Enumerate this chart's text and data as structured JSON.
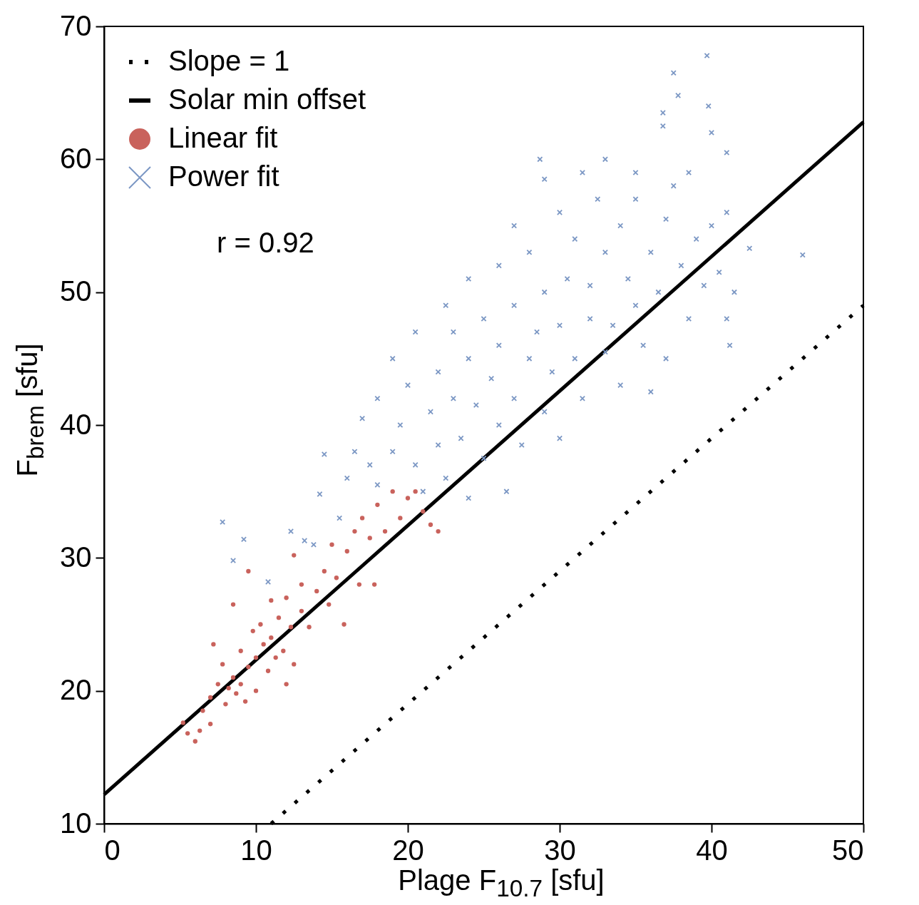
{
  "chart_data": {
    "type": "scatter",
    "xlabel": "Plage F$_{10.7}$ [sfu]",
    "ylabel": "F$_{brem}$ [sfu]",
    "xlim": [
      0,
      50
    ],
    "xticks": [
      0,
      10,
      20,
      30,
      40,
      50
    ],
    "ylim": [
      10,
      70
    ],
    "yticks": [
      10,
      20,
      30,
      40,
      50,
      60,
      70
    ],
    "legend": "top left",
    "annotations": [
      "r = 0.92"
    ],
    "series": [
      {
        "name": "Slope = 1",
        "type": "line",
        "line_style": "dotted",
        "color": "#000000",
        "x": [
          11,
          50
        ],
        "values": [
          10,
          49
        ]
      },
      {
        "name": "Solar min offset",
        "type": "line",
        "line_style": "solid",
        "color": "#000000",
        "x": [
          0,
          50
        ],
        "values": [
          12.2,
          62.8
        ]
      },
      {
        "name": "Linear fit",
        "marker": "circle",
        "color": "#c9625c",
        "x": [
          5.2,
          5.5,
          6,
          6.3,
          6.5,
          7,
          7,
          7.5,
          7.8,
          8,
          8.2,
          8.5,
          8.7,
          9,
          9,
          9.3,
          9.5,
          9.8,
          10,
          10,
          10.3,
          10.5,
          10.8,
          11,
          11,
          11.3,
          11.5,
          11.8,
          12,
          12,
          12.3,
          12.5,
          13,
          13,
          13.5,
          14,
          14.5,
          14.8,
          15,
          15.3,
          15.8,
          16,
          16.5,
          16.8,
          17,
          17.5,
          17.8,
          18,
          18.5,
          19,
          19.5,
          20,
          20.5,
          21,
          21.5,
          22,
          9.5,
          7.2,
          8.5,
          12.5
        ],
        "values": [
          17.6,
          16.8,
          16.2,
          17,
          18.5,
          19.5,
          17.5,
          20.5,
          22,
          19,
          20.2,
          21,
          19.8,
          20.5,
          23,
          19.2,
          21.8,
          24.5,
          20,
          22.5,
          25,
          23.5,
          21.5,
          24,
          26.8,
          22.5,
          25.5,
          23,
          27,
          20.5,
          24.8,
          22,
          26,
          28,
          24.8,
          27.5,
          29,
          26.5,
          31,
          28.5,
          25,
          30.5,
          32,
          28,
          33,
          31.5,
          28,
          34,
          32,
          35,
          33,
          34.5,
          35,
          33.5,
          32.5,
          32,
          29,
          23.5,
          26.5,
          30.2
        ]
      },
      {
        "name": "Power fit",
        "marker": "cross",
        "color": "#7b97c4",
        "x": [
          37.5,
          39.7,
          37.8,
          36.8,
          39.8,
          36.8,
          46,
          42.5,
          41,
          41.2,
          28.7,
          33,
          41,
          7.8,
          8.5,
          9.2,
          10.8,
          12.3,
          13.2,
          13.8,
          14.2,
          15.5,
          16,
          16.5,
          14.5,
          17,
          18,
          19,
          19.5,
          19,
          20,
          20.5,
          21,
          21.5,
          22,
          22,
          22.5,
          23,
          23,
          23.5,
          24,
          24,
          24.5,
          25,
          25,
          25.5,
          26,
          26,
          26,
          26.5,
          27,
          27,
          27.5,
          28,
          28,
          28.5,
          29,
          29,
          29.5,
          30,
          30,
          30,
          30.5,
          31,
          31,
          31.5,
          32,
          32,
          32.5,
          33,
          33,
          33.5,
          34,
          34,
          34.5,
          35,
          35,
          35.5,
          36,
          36,
          36.5,
          37,
          37,
          37.5,
          38,
          38.5,
          38.5,
          39,
          39.5,
          40,
          40,
          40.5,
          41,
          41.5,
          20.5,
          18,
          17.5,
          22.5,
          24,
          27,
          29,
          31.5,
          35
        ],
        "values": [
          66.5,
          67.8,
          64.8,
          62.5,
          64,
          63.5,
          52.8,
          53.3,
          48,
          46,
          60,
          60,
          60.5,
          32.7,
          29.8,
          31.4,
          28.2,
          32,
          31.3,
          31,
          34.8,
          33,
          36,
          38,
          37.8,
          40.5,
          35.5,
          38,
          40,
          45,
          43,
          37,
          35,
          41,
          44,
          38.5,
          36,
          42,
          47,
          39,
          45,
          51,
          41.5,
          48,
          37.5,
          43.5,
          46,
          40,
          52,
          35,
          49,
          42,
          38.5,
          45,
          53,
          47,
          41,
          50,
          44,
          56,
          47.5,
          39,
          51,
          45,
          54,
          42,
          48,
          50.5,
          57,
          45.5,
          53,
          47.5,
          55,
          43,
          51,
          49,
          57,
          46,
          53,
          42.5,
          50,
          55.5,
          45,
          58,
          52,
          48,
          59,
          54,
          50.5,
          55,
          62,
          51.5,
          56,
          50,
          47,
          42,
          37,
          49,
          34.5,
          55,
          58.5,
          59,
          59
        ]
      }
    ]
  }
}
